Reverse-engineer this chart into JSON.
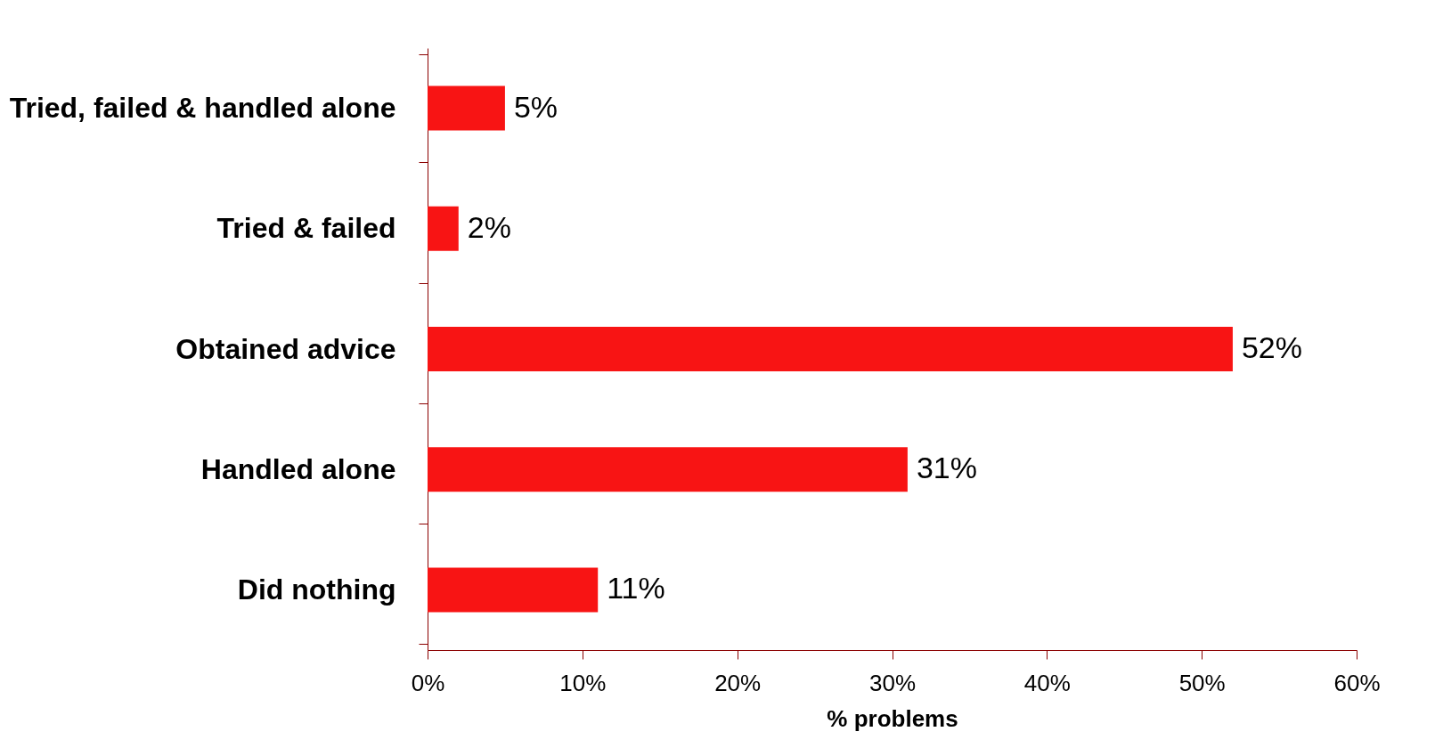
{
  "chart_data": {
    "type": "bar",
    "orientation": "horizontal",
    "xlabel": "% problems",
    "categories": [
      "Tried, failed & handled alone",
      "Tried & failed",
      "Obtained advice",
      "Handled alone",
      "Did nothing"
    ],
    "values": [
      5,
      2,
      52,
      31,
      11
    ],
    "value_labels": [
      "5%",
      "2%",
      "52%",
      "31%",
      "11%"
    ],
    "color": "#f81414",
    "xlim": [
      0,
      60
    ],
    "xticks": [
      {
        "value": 0,
        "label": "0%"
      },
      {
        "value": 10,
        "label": "10%"
      },
      {
        "value": 20,
        "label": "20%"
      },
      {
        "value": 30,
        "label": "30%"
      },
      {
        "value": 40,
        "label": "40%"
      },
      {
        "value": 50,
        "label": "50%"
      },
      {
        "value": 60,
        "label": "60%"
      }
    ],
    "grid": false
  }
}
